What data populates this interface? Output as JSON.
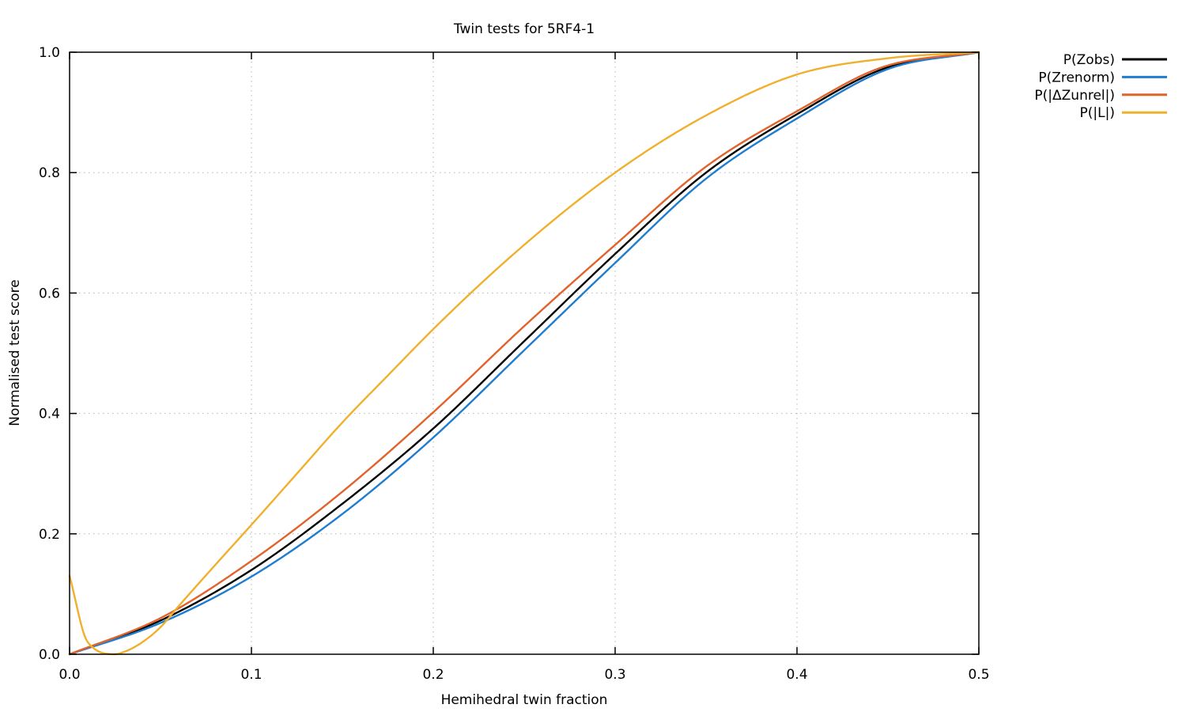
{
  "chart_data": {
    "type": "line",
    "title": "Twin tests for 5RF4-1",
    "xlabel": "Hemihedral twin fraction",
    "ylabel": "Normalised test score",
    "xlim": [
      0.0,
      0.5
    ],
    "ylim": [
      0.0,
      1.0
    ],
    "xticks": [
      "0.0",
      "0.1",
      "0.2",
      "0.3",
      "0.4",
      "0.5"
    ],
    "xtick_values": [
      0.0,
      0.1,
      0.2,
      0.3,
      0.4,
      0.5
    ],
    "yticks": [
      "0.0",
      "0.2",
      "0.4",
      "0.6",
      "0.8",
      "1.0"
    ],
    "ytick_values": [
      0.0,
      0.2,
      0.4,
      0.6,
      0.8,
      1.0
    ],
    "grid": "dotted",
    "grid_color": "#b5b5b5",
    "axis_color": "#000000",
    "background": "#ffffff",
    "legend_position": "outside-right-top",
    "series": [
      {
        "name": "P(Zobs)",
        "color": "#000000",
        "x": [
          0.0,
          0.05,
          0.1,
          0.15,
          0.2,
          0.25,
          0.3,
          0.35,
          0.4,
          0.45,
          0.5
        ],
        "y": [
          0.0,
          0.056,
          0.14,
          0.25,
          0.375,
          0.52,
          0.665,
          0.8,
          0.897,
          0.975,
          1.0
        ]
      },
      {
        "name": "P(Zrenorm)",
        "color": "#1f7dd0",
        "x": [
          0.0,
          0.05,
          0.1,
          0.15,
          0.2,
          0.25,
          0.3,
          0.35,
          0.4,
          0.45,
          0.5
        ],
        "y": [
          0.0,
          0.052,
          0.129,
          0.233,
          0.36,
          0.505,
          0.65,
          0.79,
          0.89,
          0.972,
          1.0
        ]
      },
      {
        "name": "P(|ΔZunrel|)",
        "color": "#e2622b",
        "x": [
          0.0,
          0.05,
          0.1,
          0.15,
          0.2,
          0.25,
          0.3,
          0.35,
          0.4,
          0.45,
          0.5
        ],
        "y": [
          0.0,
          0.06,
          0.155,
          0.27,
          0.402,
          0.545,
          0.68,
          0.81,
          0.902,
          0.978,
          1.0
        ]
      },
      {
        "name": "P(|L|)",
        "color": "#f0b02e",
        "x": [
          0.0,
          0.01,
          0.02,
          0.025,
          0.03,
          0.04,
          0.05,
          0.06,
          0.08,
          0.1,
          0.125,
          0.15,
          0.175,
          0.2,
          0.25,
          0.3,
          0.35,
          0.4,
          0.45,
          0.5
        ],
        "y": [
          0.13,
          0.02,
          0.001,
          0.0,
          0.004,
          0.02,
          0.045,
          0.08,
          0.148,
          0.215,
          0.3,
          0.385,
          0.463,
          0.54,
          0.68,
          0.8,
          0.895,
          0.963,
          0.99,
          1.0
        ]
      }
    ]
  }
}
